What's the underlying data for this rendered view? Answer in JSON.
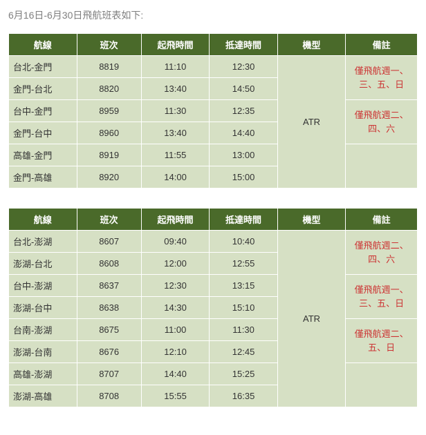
{
  "page_title": "6月16日-6月30日飛航班表如下:",
  "headers": {
    "route": "航線",
    "flight_no": "班次",
    "departure": "起飛時間",
    "arrival": "抵達時間",
    "aircraft": "機型",
    "note": "備註"
  },
  "table1": {
    "aircraft": "ATR",
    "rows": [
      {
        "route": "台北-金門",
        "no": "8819",
        "dep": "11:10",
        "arr": "12:30"
      },
      {
        "route": "金門-台北",
        "no": "8820",
        "dep": "13:40",
        "arr": "14:50"
      },
      {
        "route": "台中-金門",
        "no": "8959",
        "dep": "11:30",
        "arr": "12:35"
      },
      {
        "route": "金門-台中",
        "no": "8960",
        "dep": "13:40",
        "arr": "14:40"
      },
      {
        "route": "高雄-金門",
        "no": "8919",
        "dep": "11:55",
        "arr": "13:00"
      },
      {
        "route": "金門-高雄",
        "no": "8920",
        "dep": "14:00",
        "arr": "15:00"
      }
    ],
    "notes": [
      "僅飛航週一、三、五、日",
      "僅飛航週二、四、六",
      ""
    ]
  },
  "table2": {
    "aircraft": "ATR",
    "rows": [
      {
        "route": "台北-澎湖",
        "no": "8607",
        "dep": "09:40",
        "arr": "10:40"
      },
      {
        "route": "澎湖-台北",
        "no": "8608",
        "dep": "12:00",
        "arr": "12:55"
      },
      {
        "route": "台中-澎湖",
        "no": "8637",
        "dep": "12:30",
        "arr": "13:15"
      },
      {
        "route": "澎湖-台中",
        "no": "8638",
        "dep": "14:30",
        "arr": "15:10"
      },
      {
        "route": "台南-澎湖",
        "no": "8675",
        "dep": "11:00",
        "arr": "11:30"
      },
      {
        "route": "澎湖-台南",
        "no": "8676",
        "dep": "12:10",
        "arr": "12:45"
      },
      {
        "route": "高雄-澎湖",
        "no": "8707",
        "dep": "14:40",
        "arr": "15:25"
      },
      {
        "route": "澎湖-高雄",
        "no": "8708",
        "dep": "15:55",
        "arr": "16:35"
      }
    ],
    "notes": [
      "僅飛航週二、四、六",
      "僅飛航週一、三、五、日",
      "僅飛航週二、五、日",
      ""
    ]
  }
}
